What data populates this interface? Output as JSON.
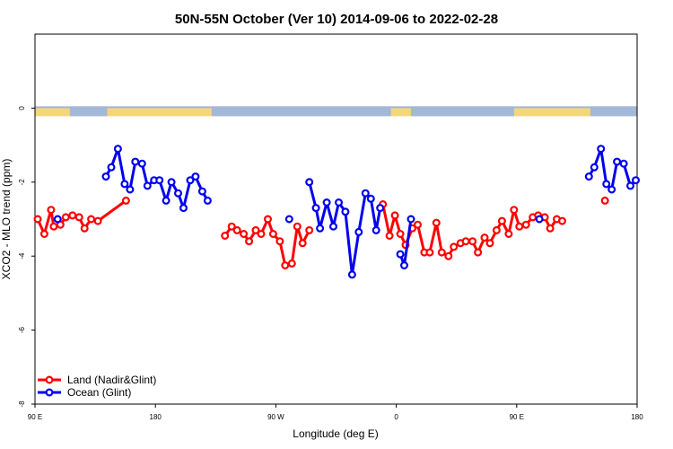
{
  "chart_data": {
    "type": "line",
    "title": "50N-55N October (Ver 10)   2014-09-06 to 2022-02-28",
    "xlabel": "Longitude (deg E)",
    "ylabel": "XCO2 - MLO trend (ppm)",
    "xlim": [
      90,
      540
    ],
    "ylim": [
      -8,
      2
    ],
    "x_ticks": [
      {
        "value": 90,
        "label": "90 E"
      },
      {
        "value": 180,
        "label": "180"
      },
      {
        "value": 270,
        "label": "90 W"
      },
      {
        "value": 360,
        "label": "0"
      },
      {
        "value": 450,
        "label": "90 E"
      },
      {
        "value": 540,
        "label": "180"
      }
    ],
    "y_ticks": [
      {
        "value": 0,
        "label": "0"
      },
      {
        "value": -2,
        "label": "-2"
      },
      {
        "value": -4,
        "label": "-4"
      },
      {
        "value": -6,
        "label": "-6"
      },
      {
        "value": -8,
        "label": "-8"
      }
    ],
    "grid": false,
    "legend_position": "bottom-left",
    "land_sea_strip": {
      "y": 0,
      "land_color": "#f5d57a",
      "ocean_color": "#a3b7d9"
    },
    "series": [
      {
        "name": "Land (Nadir&Glint)",
        "color": "#ff0000",
        "segments": [
          [
            [
              92,
              -3.0
            ],
            [
              97,
              -3.4
            ],
            [
              102,
              -2.75
            ],
            [
              104,
              -3.2
            ],
            [
              109,
              -3.15
            ],
            [
              113,
              -2.95
            ],
            [
              118,
              -2.9
            ],
            [
              123,
              -2.95
            ],
            [
              127,
              -3.25
            ],
            [
              132,
              -3.0
            ],
            [
              137,
              -3.05
            ],
            [
              158,
              -2.5
            ]
          ],
          [
            [
              232,
              -3.45
            ],
            [
              237,
              -3.2
            ],
            [
              241,
              -3.3
            ],
            [
              246,
              -3.4
            ],
            [
              250,
              -3.6
            ],
            [
              255,
              -3.3
            ],
            [
              259,
              -3.4
            ],
            [
              264,
              -3.0
            ],
            [
              268,
              -3.4
            ],
            [
              273,
              -3.6
            ],
            [
              277,
              -4.25
            ],
            [
              282,
              -4.2
            ],
            [
              286,
              -3.2
            ],
            [
              290,
              -3.65
            ],
            [
              295,
              -3.3
            ]
          ],
          [
            [
              350,
              -2.6
            ],
            [
              355,
              -3.45
            ],
            [
              359,
              -2.9
            ],
            [
              363,
              -3.4
            ],
            [
              367,
              -3.7
            ],
            [
              372,
              -3.25
            ],
            [
              376,
              -3.15
            ],
            [
              381,
              -3.9
            ],
            [
              385,
              -3.9
            ],
            [
              390,
              -3.1
            ],
            [
              394,
              -3.9
            ],
            [
              399,
              -4.0
            ],
            [
              403,
              -3.75
            ],
            [
              408,
              -3.65
            ],
            [
              412,
              -3.6
            ],
            [
              417,
              -3.6
            ],
            [
              421,
              -3.9
            ],
            [
              426,
              -3.5
            ],
            [
              430,
              -3.65
            ],
            [
              435,
              -3.3
            ],
            [
              439,
              -3.05
            ],
            [
              444,
              -3.4
            ],
            [
              448,
              -2.75
            ],
            [
              452,
              -3.2
            ],
            [
              457,
              -3.15
            ],
            [
              462,
              -2.95
            ],
            [
              466,
              -2.9
            ],
            [
              471,
              -2.95
            ],
            [
              475,
              -3.25
            ],
            [
              480,
              -3.0
            ],
            [
              484,
              -3.05
            ]
          ],
          [
            [
              516,
              -2.5
            ]
          ]
        ]
      },
      {
        "name": "Ocean (Glint)",
        "color": "#0000ee",
        "segments": [
          [
            [
              107,
              -3.0
            ]
          ],
          [
            [
              143,
              -1.85
            ],
            [
              147,
              -1.6
            ],
            [
              152,
              -1.1
            ],
            [
              157,
              -2.05
            ],
            [
              161,
              -2.2
            ],
            [
              165,
              -1.45
            ],
            [
              170,
              -1.5
            ],
            [
              174,
              -2.1
            ],
            [
              179,
              -1.95
            ],
            [
              183,
              -1.95
            ],
            [
              188,
              -2.5
            ],
            [
              192,
              -2.0
            ],
            [
              197,
              -2.3
            ],
            [
              201,
              -2.7
            ],
            [
              206,
              -1.95
            ],
            [
              210,
              -1.85
            ],
            [
              215,
              -2.25
            ],
            [
              219,
              -2.5
            ]
          ],
          [
            [
              280,
              -3.0
            ]
          ],
          [
            [
              295,
              -2.0
            ],
            [
              300,
              -2.7
            ],
            [
              303,
              -3.25
            ],
            [
              308,
              -2.55
            ],
            [
              313,
              -3.2
            ],
            [
              317,
              -2.55
            ],
            [
              322,
              -2.8
            ],
            [
              327,
              -4.5
            ],
            [
              332,
              -3.35
            ],
            [
              337,
              -2.3
            ],
            [
              341,
              -2.45
            ],
            [
              345,
              -3.3
            ],
            [
              348,
              -2.7
            ]
          ],
          [
            [
              363,
              -3.95
            ],
            [
              366,
              -4.25
            ],
            [
              371,
              -3.0
            ]
          ],
          [
            [
              467,
              -3.0
            ]
          ],
          [
            [
              504,
              -1.85
            ],
            [
              508,
              -1.6
            ],
            [
              513,
              -1.1
            ],
            [
              517,
              -2.05
            ],
            [
              521,
              -2.2
            ],
            [
              525,
              -1.45
            ],
            [
              530,
              -1.5
            ],
            [
              535,
              -2.1
            ],
            [
              539,
              -1.95
            ]
          ]
        ]
      }
    ]
  }
}
